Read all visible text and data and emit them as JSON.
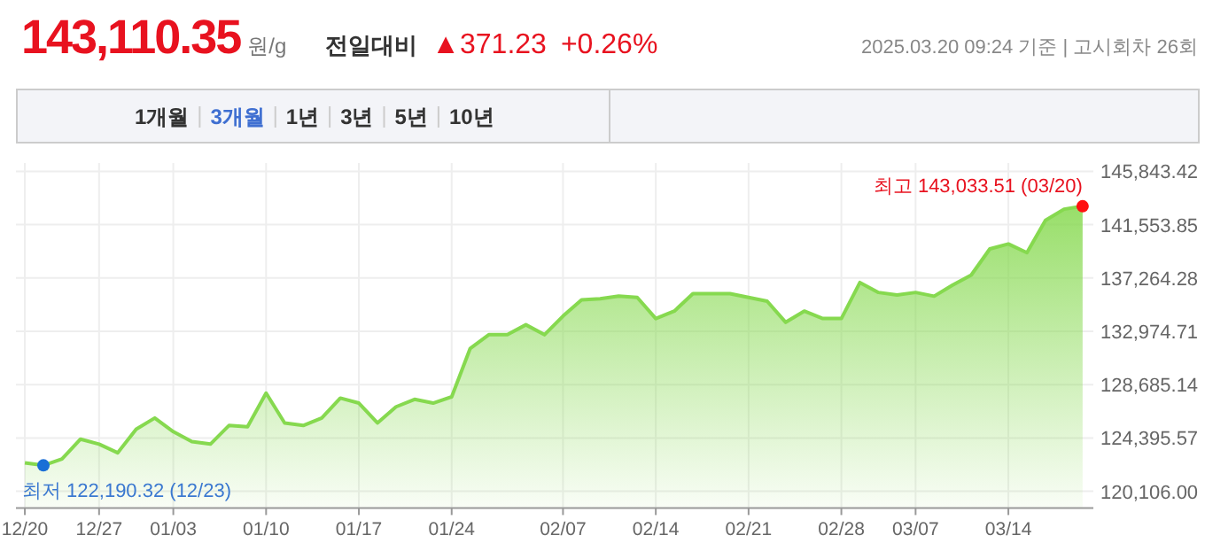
{
  "chart_data": {
    "type": "area",
    "title": "143,110.35",
    "annotations": [
      "원/g",
      "전일대비",
      "▲371.23",
      "+0.26%",
      "2025.03.20 09:24 기준 | 고시회차 26회",
      "1개월",
      "3개월",
      "1년",
      "3년",
      "5년",
      "10년",
      "최저 122,190.32 (12/23)",
      "최고 143,033.51 (03/20)"
    ],
    "categories": [
      "12/20",
      null,
      null,
      null,
      "12/27",
      null,
      null,
      null,
      "01/03",
      null,
      null,
      null,
      null,
      "01/10",
      null,
      null,
      null,
      null,
      "01/17",
      null,
      null,
      null,
      null,
      "01/24",
      null,
      null,
      null,
      null,
      null,
      "02/07",
      null,
      null,
      null,
      null,
      "02/14",
      null,
      null,
      null,
      null,
      "02/21",
      null,
      null,
      null,
      null,
      "02/28",
      null,
      null,
      null,
      "03/07",
      null,
      null,
      null,
      null,
      "03/14",
      null,
      null,
      null,
      null
    ],
    "series": [
      {
        "color": "#86d94f",
        "values": [
          122400,
          122190.32,
          122700,
          124300,
          123900,
          123200,
          125100,
          126000,
          124900,
          124100,
          123900,
          125400,
          125300,
          128000,
          125600,
          125400,
          126000,
          127600,
          127200,
          125600,
          126900,
          127500,
          127200,
          127700,
          131600,
          132700,
          132700,
          133500,
          132700,
          134200,
          135500,
          135600,
          135800,
          135700,
          134000,
          134600,
          136000,
          136000,
          136000,
          135700,
          135400,
          133700,
          134600,
          134000,
          134000,
          136900,
          136100,
          135900,
          136100,
          135800,
          136700,
          137500,
          139600,
          140000,
          139300,
          141900,
          142800,
          143033.51
        ]
      }
    ],
    "ylim": [
      118765,
      146514
    ],
    "yticks": [
      {
        "value": 120106,
        "label": "120,106.00"
      },
      {
        "value": 124395.57,
        "label": "124,395.57"
      },
      {
        "value": 128685.14,
        "label": "128,685.14"
      },
      {
        "value": 132974.71,
        "label": "132,974.71"
      },
      {
        "value": 137264.28,
        "label": "137,264.28"
      },
      {
        "value": 141553.85,
        "label": "141,553.85"
      },
      {
        "value": 145843.42,
        "label": "145,843.42"
      }
    ],
    "grid": true
  }
}
